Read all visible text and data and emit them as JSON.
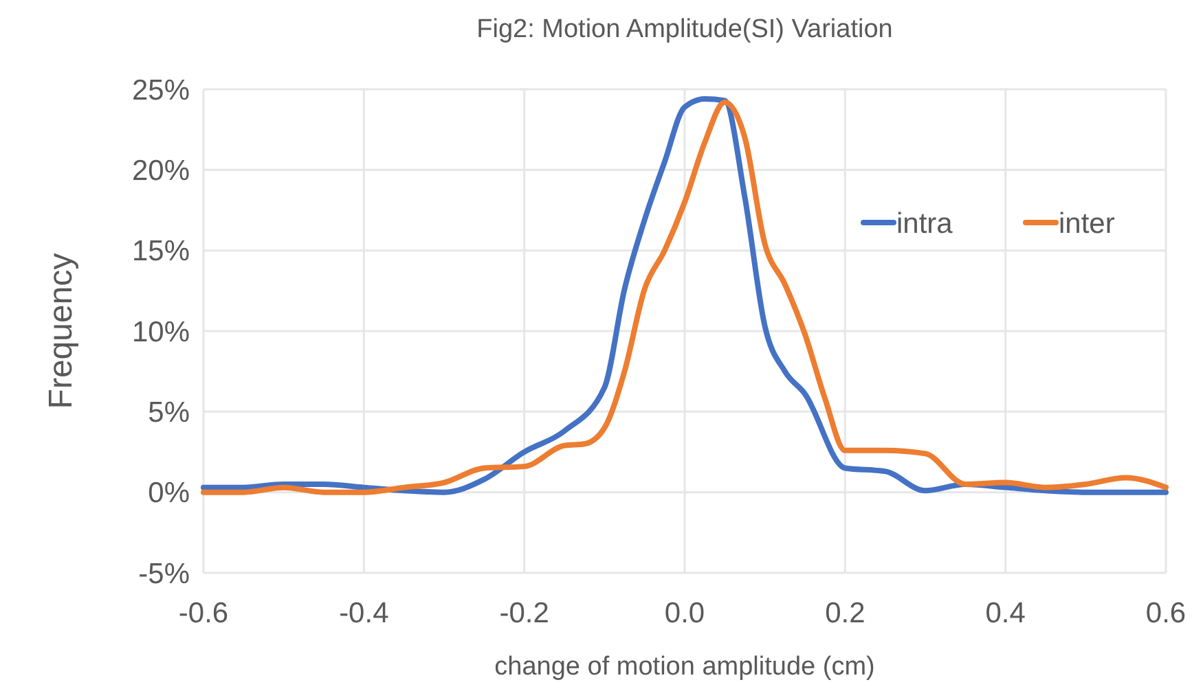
{
  "chart_data": {
    "type": "line",
    "title": "Fig2: Motion Amplitude(SI) Variation",
    "xlabel": "change of  motion amplitude (cm)",
    "ylabel": "Frequency",
    "xlim": [
      -0.6,
      0.6
    ],
    "xticks": [
      -0.6,
      -0.4,
      -0.2,
      {
        "value": 0,
        "label": "0.0"
      },
      0.2,
      0.4,
      0.6
    ],
    "ylim": [
      -5,
      25
    ],
    "yticks": [
      {
        "value": -5,
        "label": "-5%"
      },
      {
        "value": 0,
        "label": "0%"
      },
      {
        "value": 5,
        "label": "5%"
      },
      {
        "value": 10,
        "label": "10%"
      },
      {
        "value": 15,
        "label": "15%"
      },
      {
        "value": 20,
        "label": "20%"
      },
      {
        "value": 25,
        "label": "25%"
      }
    ],
    "grid": true,
    "legend": "top right",
    "marker": "none",
    "line_style": "solid",
    "series": [
      {
        "name": "intra",
        "color": "#4472c4",
        "x": [
          -0.6,
          -0.55,
          -0.5,
          -0.45,
          -0.4,
          -0.35,
          -0.3,
          -0.25,
          -0.2,
          -0.15,
          -0.1,
          -0.075,
          -0.05,
          -0.025,
          0,
          0.025,
          0.05,
          0.075,
          0.1,
          0.125,
          0.15,
          0.2,
          0.25,
          0.3,
          0.35,
          0.4,
          0.45,
          0.5,
          0.55,
          0.6
        ],
        "values": [
          0.3,
          0.3,
          0.5,
          0.5,
          0.3,
          0.1,
          0,
          0.8,
          2.5,
          3.8,
          6.5,
          12.6,
          16.9,
          20.5,
          23.9,
          24.4,
          24.3,
          18.3,
          10.3,
          7.5,
          6.1,
          1.5,
          1.3,
          0.1,
          0.5,
          0.3,
          0.1,
          0,
          0,
          0
        ]
      },
      {
        "name": "inter",
        "color": "#ed7d31",
        "x": [
          -0.6,
          -0.55,
          -0.5,
          -0.45,
          -0.4,
          -0.35,
          -0.3,
          -0.25,
          -0.2,
          -0.15,
          -0.125,
          -0.1,
          -0.075,
          -0.05,
          -0.025,
          0,
          0.025,
          0.05,
          0.075,
          0.1,
          0.125,
          0.15,
          0.175,
          0.2,
          0.25,
          0.3,
          0.35,
          0.4,
          0.45,
          0.5,
          0.55,
          0.6
        ],
        "values": [
          0,
          0,
          0.3,
          0,
          0,
          0.3,
          0.6,
          1.5,
          1.6,
          2.9,
          3,
          4,
          7.5,
          12.6,
          15,
          18,
          21.7,
          24.2,
          22,
          15.4,
          12.9,
          9.8,
          5.8,
          2.6,
          2.6,
          2.4,
          0.5,
          0.6,
          0.3,
          0.5,
          0.9,
          0.3
        ]
      }
    ]
  }
}
